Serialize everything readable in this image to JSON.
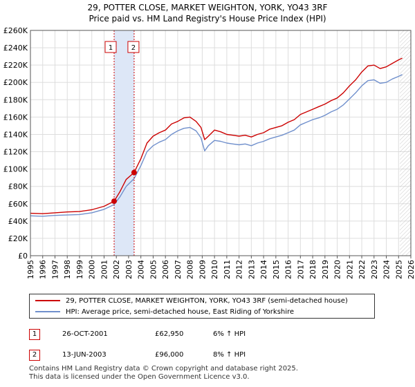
{
  "chart_data": {
    "type": "line",
    "title": "29, POTTER CLOSE, MARKET WEIGHTON, YORK, YO43 3RF",
    "subtitle": "Price paid vs. HM Land Registry's House Price Index (HPI)",
    "xlim": [
      1995,
      2026
    ],
    "ylim": [
      0,
      260000
    ],
    "y_ticks": [
      0,
      20000,
      40000,
      60000,
      80000,
      100000,
      120000,
      140000,
      160000,
      180000,
      200000,
      220000,
      240000,
      260000
    ],
    "y_tick_labels": [
      "£0",
      "£20K",
      "£40K",
      "£60K",
      "£80K",
      "£100K",
      "£120K",
      "£140K",
      "£160K",
      "£180K",
      "£200K",
      "£220K",
      "£240K",
      "£260K"
    ],
    "x_ticks": [
      "1995",
      "1996",
      "1997",
      "1998",
      "1999",
      "2000",
      "2001",
      "2002",
      "2003",
      "2004",
      "2005",
      "2006",
      "2007",
      "2008",
      "2009",
      "2010",
      "2011",
      "2012",
      "2013",
      "2014",
      "2015",
      "2016",
      "2017",
      "2018",
      "2019",
      "2020",
      "2021",
      "2022",
      "2023",
      "2024",
      "2025",
      "2026"
    ],
    "grid": true,
    "highlight_band": [
      2001.82,
      2003.45
    ],
    "future_hatch_from": 2025.1,
    "series": [
      {
        "name": "29, POTTER CLOSE, MARKET WEIGHTON, YORK, YO43 3RF (semi-detached house)",
        "color": "#cc0000",
        "x": [
          1995,
          1996,
          1997,
          1998,
          1999,
          2000,
          2001,
          2001.82,
          2002.3,
          2002.8,
          2003.45,
          2004,
          2004.5,
          2005,
          2005.5,
          2006,
          2006.5,
          2007,
          2007.5,
          2008,
          2008.5,
          2008.9,
          2009.2,
          2009.5,
          2010,
          2010.5,
          2011,
          2011.5,
          2012,
          2012.5,
          2013,
          2013.5,
          2014,
          2014.5,
          2015,
          2015.5,
          2016,
          2016.5,
          2017,
          2017.5,
          2018,
          2018.5,
          2019,
          2019.5,
          2020,
          2020.5,
          2021,
          2021.5,
          2022,
          2022.5,
          2023,
          2023.5,
          2024,
          2024.5,
          2025,
          2025.3
        ],
        "values": [
          49000,
          48500,
          49500,
          50500,
          51000,
          53000,
          57000,
          62950,
          74000,
          88000,
          96000,
          112000,
          130000,
          138000,
          142000,
          145000,
          152000,
          155000,
          159000,
          160000,
          155000,
          148000,
          134000,
          138000,
          145000,
          143000,
          140000,
          139000,
          138000,
          139000,
          137000,
          140000,
          142000,
          146000,
          148000,
          150000,
          154000,
          157000,
          163000,
          166000,
          169000,
          172000,
          175000,
          179000,
          182000,
          188000,
          196000,
          203000,
          212000,
          219000,
          220000,
          216000,
          218000,
          222000,
          226000,
          228000
        ]
      },
      {
        "name": "HPI: Average price, semi-detached house, East Riding of Yorkshire",
        "color": "#6f8fcc",
        "x": [
          1995,
          1996,
          1997,
          1998,
          1999,
          2000,
          2001,
          2001.82,
          2002.3,
          2002.8,
          2003.45,
          2004,
          2004.5,
          2005,
          2005.5,
          2006,
          2006.5,
          2007,
          2007.5,
          2008,
          2008.5,
          2008.9,
          2009.2,
          2009.5,
          2010,
          2010.5,
          2011,
          2011.5,
          2012,
          2012.5,
          2013,
          2013.5,
          2014,
          2014.5,
          2015,
          2015.5,
          2016,
          2016.5,
          2017,
          2017.5,
          2018,
          2018.5,
          2019,
          2019.5,
          2020,
          2020.5,
          2021,
          2021.5,
          2022,
          2022.5,
          2023,
          2023.5,
          2024,
          2024.5,
          2025,
          2025.3
        ],
        "values": [
          46000,
          45500,
          46500,
          47000,
          47500,
          49500,
          53500,
          59000,
          68000,
          80000,
          89000,
          104000,
          120000,
          127000,
          131000,
          134000,
          140000,
          144000,
          147000,
          148000,
          144000,
          136000,
          121000,
          127000,
          133000,
          132000,
          130000,
          129000,
          128000,
          129000,
          127000,
          130000,
          132000,
          135000,
          137000,
          139000,
          142000,
          145000,
          151000,
          154000,
          157000,
          159000,
          162000,
          166000,
          169000,
          174000,
          181000,
          188000,
          196000,
          202000,
          203000,
          199000,
          200000,
          204000,
          207000,
          209000
        ]
      }
    ],
    "annotations": [
      {
        "label": "1",
        "x": 2001.82,
        "value": 62950
      },
      {
        "label": "2",
        "x": 2003.45,
        "value": 96000
      }
    ]
  },
  "legend": {
    "entries": [
      {
        "label": "29, POTTER CLOSE, MARKET WEIGHTON, YORK, YO43 3RF (semi-detached house)",
        "color": "#cc0000"
      },
      {
        "label": "HPI: Average price, semi-detached house, East Riding of Yorkshire",
        "color": "#6f8fcc"
      }
    ]
  },
  "transactions": [
    {
      "num": "1",
      "date": "26-OCT-2001",
      "price": "£62,950",
      "hpi": "6% ↑ HPI"
    },
    {
      "num": "2",
      "date": "13-JUN-2003",
      "price": "£96,000",
      "hpi": "8% ↑ HPI"
    }
  ],
  "footer": {
    "line1": "Contains HM Land Registry data © Crown copyright and database right 2025.",
    "line2": "This data is licensed under the Open Government Licence v3.0."
  }
}
